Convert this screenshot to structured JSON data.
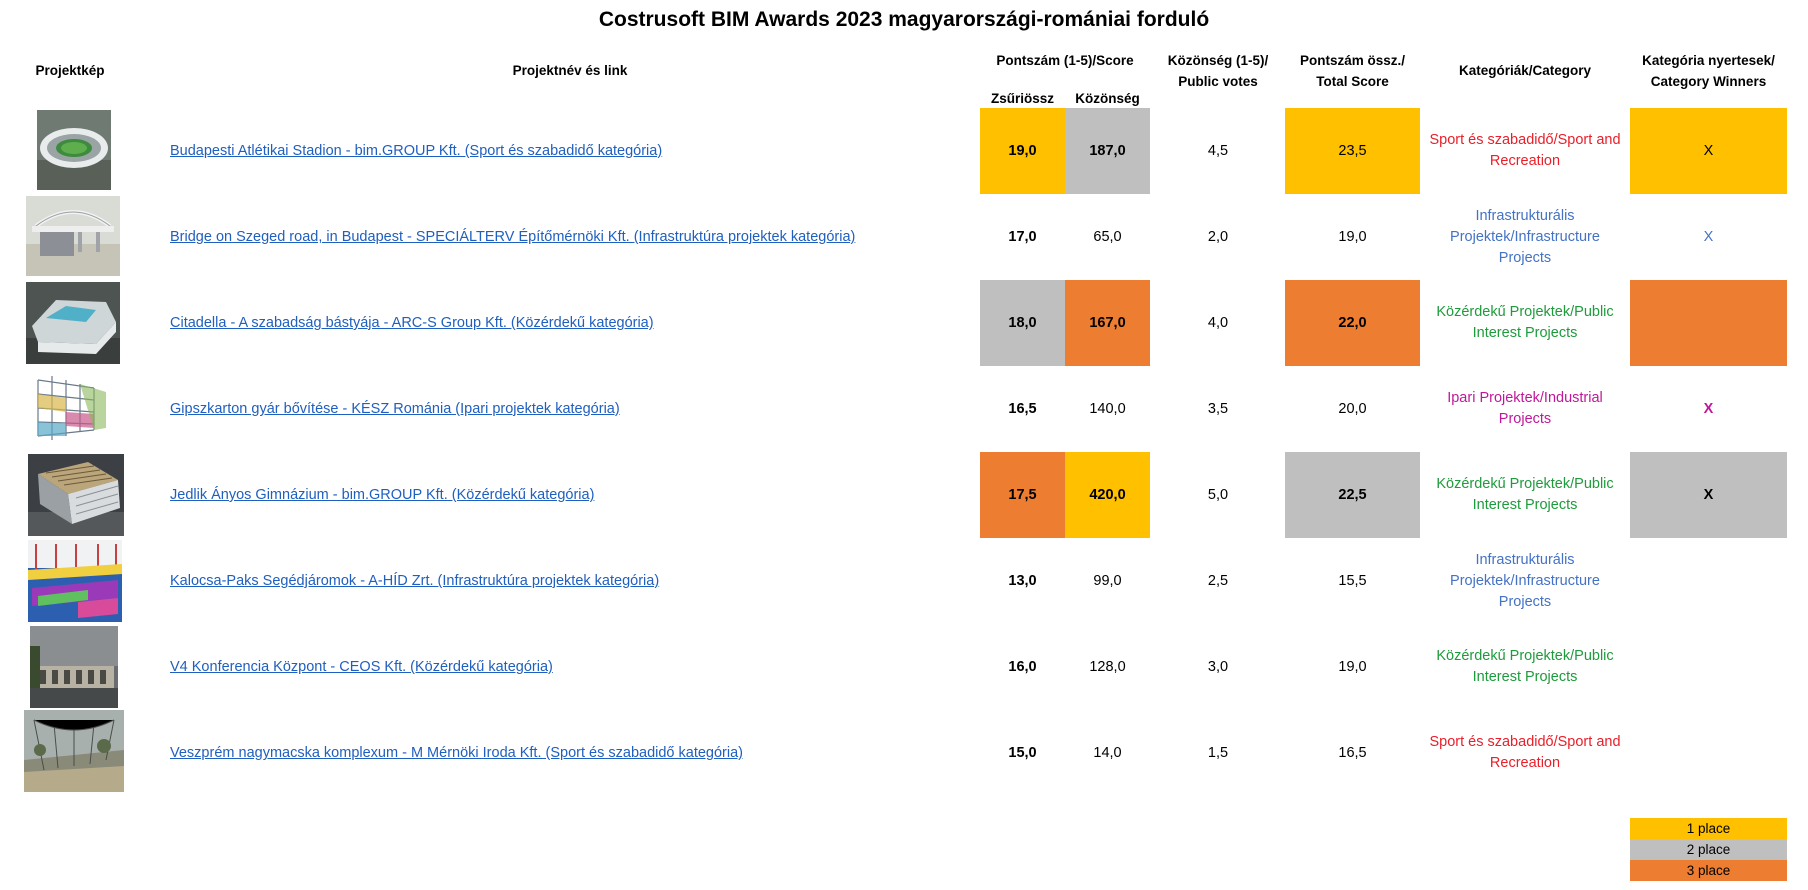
{
  "title": "Costrusoft BIM Awards 2023 magyarországi-romániai forduló",
  "headers": {
    "image": "Projektkép",
    "name": "Projektnév és link",
    "score": "Pontszám (1-5)/Score",
    "jury": "Zsűriössz",
    "public": "Közönség",
    "votes_1": "Közönség (1-5)/",
    "votes_2": "Public votes",
    "total_1": "Pontszám össz./",
    "total_2": "Total Score",
    "category": "Kategóriák/Category",
    "winners_1": "Kategória nyertesek/",
    "winners_2": "Category Winners"
  },
  "rows": [
    {
      "thumb": "stadium-thumbnail",
      "name": "Budapesti Atlétikai Stadion - bim.GROUP Kft. (Sport és szabadidő kategória)",
      "jury": "19,0",
      "public": "187,0",
      "votes": "4,5",
      "total": "23,5",
      "cat_1": "Sport és szabadidő/Sport and",
      "cat_2": "Recreation",
      "cat_3": "",
      "winner": "X",
      "jury_fill": "#FFC000",
      "public_fill": "#BFBFBF",
      "total_fill": "#FFC000",
      "win_fill": "#FFC000",
      "cat_color": "#E8202A",
      "win_color": "#000000"
    },
    {
      "thumb": "bridge-thumbnail",
      "name": "Bridge on Szeged road, in Budapest - SPECIÁLTERV Építőmérnöki Kft. (Infrastruktúra projektek kategória)",
      "jury": "17,0",
      "public": "65,0",
      "votes": "2,0",
      "total": "19,0",
      "cat_1": "Infrastrukturális",
      "cat_2": "Projektek/Infrastructure",
      "cat_3": "Projects",
      "winner": "X",
      "jury_fill": "",
      "public_fill": "",
      "total_fill": "",
      "win_fill": "",
      "cat_color": "#4472C4",
      "win_color": "#4472C4"
    },
    {
      "thumb": "citadella-thumbnail",
      "name": "Citadella - A szabadság bástyája - ARC-S Group Kft. (Közérdekű kategória)",
      "jury": "18,0",
      "public": "167,0",
      "votes": "4,0",
      "total": "22,0",
      "cat_1": "Közérdekű Projektek/Public",
      "cat_2": "Interest Projects",
      "cat_3": "",
      "winner": "",
      "jury_fill": "#BFBFBF",
      "public_fill": "#ED7D31",
      "total_fill": "#ED7D31",
      "win_fill": "#ED7D31",
      "cat_color": "#1E9B3C",
      "win_color": "#000000"
    },
    {
      "thumb": "factory-thumbnail",
      "name": "Gipszkarton gyár bővítése - KÉSZ Románia (Ipari projektek kategória)",
      "jury": "16,5",
      "public": "140,0",
      "votes": "3,5",
      "total": "20,0",
      "cat_1": "Ipari Projektek/Industrial",
      "cat_2": "Projects",
      "cat_3": "",
      "winner": "X",
      "jury_fill": "",
      "public_fill": "",
      "total_fill": "",
      "win_fill": "",
      "cat_color": "#C0189A",
      "win_color": "#C0189A"
    },
    {
      "thumb": "school-thumbnail",
      "name": "Jedlik Ányos Gimnázium - bim.GROUP Kft. (Közérdekű kategória)",
      "jury": "17,5",
      "public": "420,0",
      "votes": "5,0",
      "total": "22,5",
      "cat_1": "Közérdekű Projektek/Public",
      "cat_2": "Interest Projects",
      "cat_3": "",
      "winner": "X",
      "jury_fill": "#ED7D31",
      "public_fill": "#FFC000",
      "total_fill": "#BFBFBF",
      "win_fill": "#BFBFBF",
      "cat_color": "#1E9B3C",
      "win_color": "#000000"
    },
    {
      "thumb": "ferry-thumbnail",
      "name": "Kalocsa-Paks Segédjáromok - A-HÍD Zrt. (Infrastruktúra projektek kategória)",
      "jury": "13,0",
      "public": "99,0",
      "votes": "2,5",
      "total": "15,5",
      "cat_1": "Infrastrukturális",
      "cat_2": "Projektek/Infrastructure",
      "cat_3": "Projects",
      "winner": "",
      "jury_fill": "",
      "public_fill": "",
      "total_fill": "",
      "win_fill": "",
      "cat_color": "#4472C4",
      "win_color": "#000000"
    },
    {
      "thumb": "conference-thumbnail",
      "name": "V4 Konferencia Központ - CEOS Kft. (Közérdekű kategória)",
      "jury": "16,0",
      "public": "128,0",
      "votes": "3,0",
      "total": "19,0",
      "cat_1": "Közérdekű Projektek/Public",
      "cat_2": "Interest Projects",
      "cat_3": "",
      "winner": "",
      "jury_fill": "",
      "public_fill": "",
      "total_fill": "",
      "win_fill": "",
      "cat_color": "#1E9B3C",
      "win_color": "#000000"
    },
    {
      "thumb": "bigcat-thumbnail",
      "name": "Veszprém nagymacska komplexum - M Mérnöki Iroda Kft. (Sport és szabadidő kategória)",
      "jury": "15,0",
      "public": "14,0",
      "votes": "1,5",
      "total": "16,5",
      "cat_1": "Sport és szabadidő/Sport and",
      "cat_2": "Recreation",
      "cat_3": "",
      "winner": "",
      "jury_fill": "",
      "public_fill": "",
      "total_fill": "",
      "win_fill": "",
      "cat_color": "#E8202A",
      "win_color": "#000000"
    }
  ],
  "legend": [
    {
      "label": "1 place",
      "color": "#FFC000"
    },
    {
      "label": "2 place",
      "color": "#BFBFBF"
    },
    {
      "label": "3 place",
      "color": "#ED7D31"
    }
  ]
}
